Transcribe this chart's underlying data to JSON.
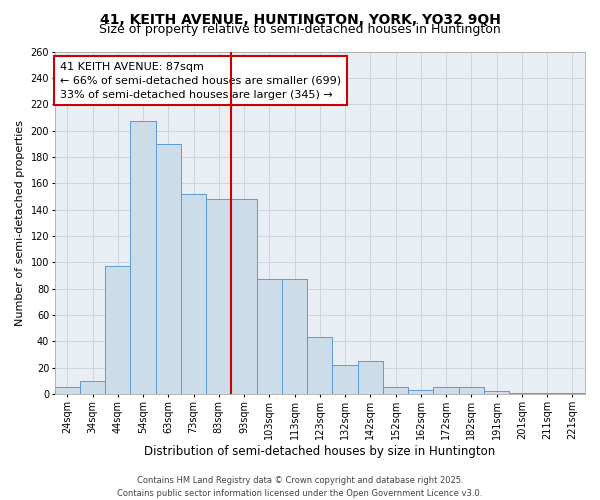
{
  "title": "41, KEITH AVENUE, HUNTINGTON, YORK, YO32 9QH",
  "subtitle": "Size of property relative to semi-detached houses in Huntington",
  "xlabel": "Distribution of semi-detached houses by size in Huntington",
  "ylabel": "Number of semi-detached properties",
  "annotation_text": "41 KEITH AVENUE: 87sqm\n← 66% of semi-detached houses are smaller (699)\n33% of semi-detached houses are larger (345) →",
  "categories": [
    "24sqm",
    "34sqm",
    "44sqm",
    "54sqm",
    "63sqm",
    "73sqm",
    "83sqm",
    "93sqm",
    "103sqm",
    "113sqm",
    "123sqm",
    "132sqm",
    "142sqm",
    "152sqm",
    "162sqm",
    "172sqm",
    "182sqm",
    "191sqm",
    "201sqm",
    "211sqm",
    "221sqm"
  ],
  "values": [
    5,
    10,
    97,
    207,
    190,
    152,
    148,
    148,
    87,
    87,
    43,
    22,
    25,
    5,
    3,
    5,
    5,
    2,
    1,
    1,
    1
  ],
  "bar_color": "#ccdce8",
  "bar_edge_color": "#5b9bd5",
  "red_line_index": 7,
  "red_line_color": "#cc0000",
  "box_edge_color": "#cc0000",
  "grid_color": "#c8d0d8",
  "background_color": "#e8eef4",
  "footer_text": "Contains HM Land Registry data © Crown copyright and database right 2025.\nContains public sector information licensed under the Open Government Licence v3.0.",
  "ylim": [
    0,
    260
  ],
  "yticks": [
    0,
    20,
    40,
    60,
    80,
    100,
    120,
    140,
    160,
    180,
    200,
    220,
    240,
    260
  ],
  "title_fontsize": 10,
  "subtitle_fontsize": 9,
  "xlabel_fontsize": 8.5,
  "ylabel_fontsize": 8,
  "tick_fontsize": 7,
  "annotation_fontsize": 8,
  "footer_fontsize": 6
}
